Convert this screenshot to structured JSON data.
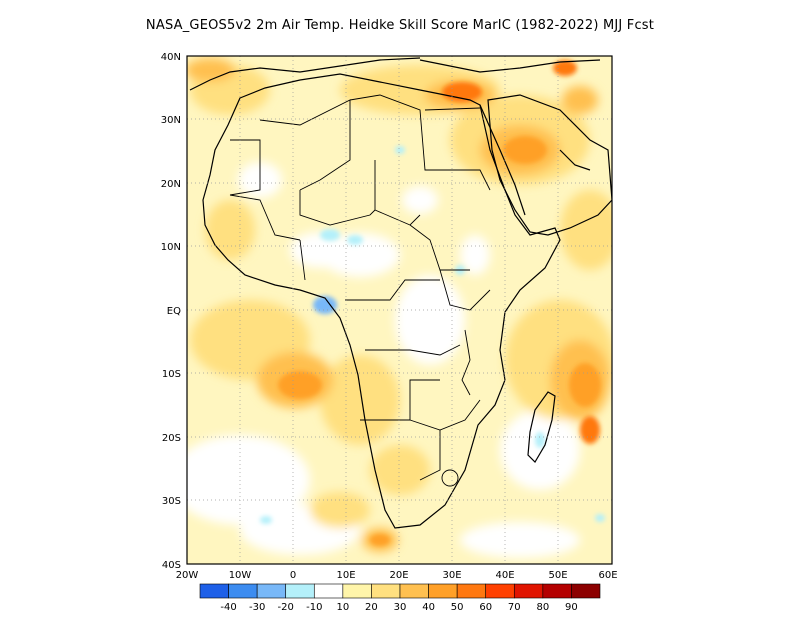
{
  "title": "NASA_GEOS5v2  2m Air Temp. Heidke Skill Score MarIC (1982-2022) MJJ Fcst",
  "map": {
    "lat_labels": [
      "40N",
      "30N",
      "20N",
      "10N",
      "EQ",
      "10S",
      "20S",
      "30S",
      "40S"
    ],
    "lon_labels": [
      "20W",
      "10W",
      "0",
      "10E",
      "20E",
      "30E",
      "40E",
      "50E",
      "60E"
    ],
    "extent": {
      "lon": [
        -20,
        60
      ],
      "lat": [
        -40,
        40
      ]
    }
  },
  "colorbar": {
    "labels": [
      "-40",
      "-30",
      "-20",
      "-10",
      "10",
      "20",
      "30",
      "40",
      "50",
      "60",
      "70",
      "80",
      "90"
    ],
    "colors": [
      "#1e60e8",
      "#3c8cf0",
      "#78b8f8",
      "#b4f0fa",
      "#ffffff",
      "#fff5aa",
      "#ffe080",
      "#ffc050",
      "#ffa028",
      "#ff7810",
      "#ff4000",
      "#e01400",
      "#b40000",
      "#8c0000"
    ]
  },
  "palette": {
    "light_yellow": "#fff3b0",
    "yellow": "#ffe080",
    "orange_light": "#ffc050",
    "orange": "#ffa028",
    "orange_dark": "#ff7810",
    "red_orange": "#ff5a10",
    "light_blue": "#b4f0fa",
    "blue": "#78b8f8"
  }
}
